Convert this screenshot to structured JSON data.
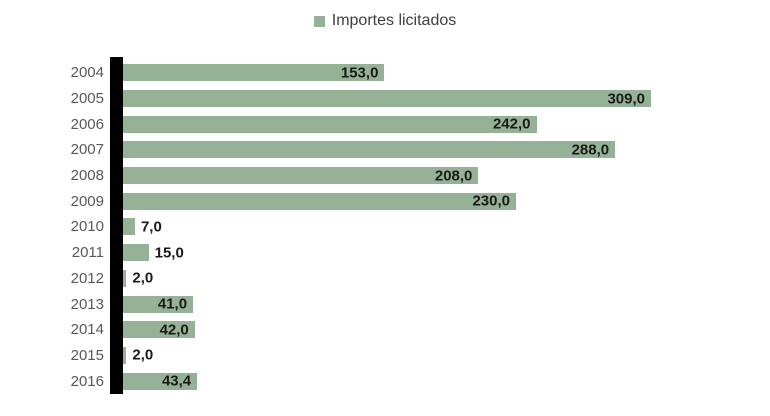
{
  "legend": {
    "label": "Importes licitados"
  },
  "colors": {
    "bar": "#96b296",
    "axis": "#000000",
    "year_label": "#595959",
    "value_label": "#1a1a1a",
    "legend_text": "#404040"
  },
  "chart_data": {
    "type": "bar",
    "orientation": "horizontal",
    "title": "",
    "xlabel": "",
    "ylabel": "",
    "series_name": "Importes licitados",
    "categories": [
      "2004",
      "2005",
      "2006",
      "2007",
      "2008",
      "2009",
      "2010",
      "2011",
      "2012",
      "2013",
      "2014",
      "2015",
      "2016"
    ],
    "values": [
      153.0,
      309.0,
      242.0,
      288.0,
      208.0,
      230.0,
      7.0,
      15.0,
      2.0,
      41.0,
      42.0,
      2.0,
      43.4
    ],
    "value_labels": [
      "153,0",
      "309,0",
      "242,0",
      "288,0",
      "208,0",
      "230,0",
      "7,0",
      "15,0",
      "2,0",
      "41,0",
      "42,0",
      "2,0",
      "43,4"
    ],
    "xlim": [
      0,
      309
    ],
    "grid": false,
    "legend_position": "top",
    "data_labels": true
  }
}
